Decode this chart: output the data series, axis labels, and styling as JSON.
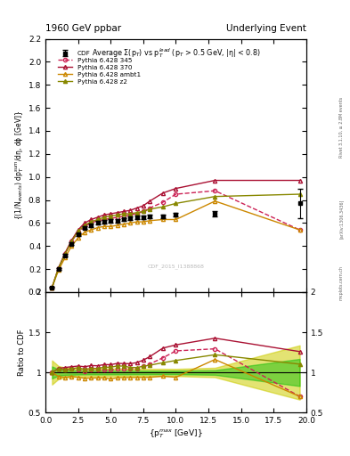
{
  "title_left": "1960 GeV ppbar",
  "title_right": "Underlying Event",
  "right_label": "Rivet 3.1.10, ≥ 2.8M events",
  "arxiv_label": "[arXiv:1306.3436]",
  "mcplots_label": "mcplots.cern.ch",
  "watermark": "CDF_2015_I1388868",
  "plot_title": "Average Σ(p$_T$) vs p$_T^{lead}$ (p$_T$ > 0.5 GeV, |η| < 0.8)",
  "ylabel_main": "{(1/N$_{events}$) dp$_T^{sum}$/dη, dϕ [GeV]}",
  "ylabel_ratio": "Ratio to CDF",
  "xlabel": "{p$_T^{max}$ [GeV]}",
  "cdf_x": [
    0.5,
    1.0,
    1.5,
    2.0,
    2.5,
    3.0,
    3.5,
    4.0,
    4.5,
    5.0,
    5.5,
    6.0,
    6.5,
    7.0,
    7.5,
    8.0,
    9.0,
    10.0,
    13.0,
    19.5
  ],
  "cdf_y": [
    0.04,
    0.2,
    0.32,
    0.42,
    0.5,
    0.56,
    0.58,
    0.6,
    0.61,
    0.62,
    0.62,
    0.63,
    0.64,
    0.65,
    0.65,
    0.66,
    0.66,
    0.67,
    0.68,
    0.77
  ],
  "cdf_yerr": [
    0.003,
    0.008,
    0.01,
    0.012,
    0.013,
    0.014,
    0.014,
    0.015,
    0.015,
    0.015,
    0.015,
    0.015,
    0.015,
    0.015,
    0.015,
    0.015,
    0.015,
    0.015,
    0.02,
    0.13
  ],
  "cdf_color": "#000000",
  "p345_x": [
    0.5,
    1.0,
    1.5,
    2.0,
    2.5,
    3.0,
    3.5,
    4.0,
    4.5,
    5.0,
    5.5,
    6.0,
    6.5,
    7.0,
    7.5,
    8.0,
    9.0,
    10.0,
    13.0,
    19.5
  ],
  "p345_y": [
    0.04,
    0.21,
    0.33,
    0.44,
    0.52,
    0.57,
    0.6,
    0.62,
    0.63,
    0.64,
    0.65,
    0.66,
    0.67,
    0.68,
    0.7,
    0.73,
    0.78,
    0.85,
    0.88,
    0.54
  ],
  "p345_color": "#cc2255",
  "p345_label": "Pythia 6.428 345",
  "p370_x": [
    0.5,
    1.0,
    1.5,
    2.0,
    2.5,
    3.0,
    3.5,
    4.0,
    4.5,
    5.0,
    5.5,
    6.0,
    6.5,
    7.0,
    7.5,
    8.0,
    9.0,
    10.0,
    13.0,
    19.5
  ],
  "p370_y": [
    0.04,
    0.21,
    0.34,
    0.45,
    0.54,
    0.6,
    0.63,
    0.65,
    0.67,
    0.68,
    0.69,
    0.7,
    0.71,
    0.73,
    0.75,
    0.79,
    0.86,
    0.9,
    0.97,
    0.97
  ],
  "p370_color": "#aa1133",
  "p370_label": "Pythia 6.428 370",
  "pambt_x": [
    0.5,
    1.0,
    1.5,
    2.0,
    2.5,
    3.0,
    3.5,
    4.0,
    4.5,
    5.0,
    5.5,
    6.0,
    6.5,
    7.0,
    7.5,
    8.0,
    9.0,
    10.0,
    13.0,
    19.5
  ],
  "pambt_y": [
    0.04,
    0.19,
    0.3,
    0.4,
    0.47,
    0.52,
    0.54,
    0.56,
    0.57,
    0.57,
    0.58,
    0.59,
    0.6,
    0.61,
    0.61,
    0.62,
    0.63,
    0.63,
    0.79,
    0.54
  ],
  "pambt_color": "#cc8800",
  "pambt_label": "Pythia 6.428 ambt1",
  "pz2_x": [
    0.5,
    1.0,
    1.5,
    2.0,
    2.5,
    3.0,
    3.5,
    4.0,
    4.5,
    5.0,
    5.5,
    6.0,
    6.5,
    7.0,
    7.5,
    8.0,
    9.0,
    10.0,
    13.0,
    19.5
  ],
  "pz2_y": [
    0.04,
    0.21,
    0.33,
    0.44,
    0.53,
    0.58,
    0.61,
    0.63,
    0.65,
    0.66,
    0.67,
    0.68,
    0.68,
    0.69,
    0.7,
    0.72,
    0.74,
    0.77,
    0.83,
    0.85
  ],
  "pz2_color": "#888800",
  "pz2_label": "Pythia 6.428 z2",
  "ylim_main": [
    0,
    2.2
  ],
  "ylim_ratio": [
    0.5,
    2.0
  ],
  "xlim": [
    0,
    20
  ],
  "band_inner_color": "#00bb00",
  "band_inner_alpha": 0.45,
  "band_outer_color": "#cccc00",
  "band_outer_alpha": 0.55,
  "bg_color": "#ffffff"
}
